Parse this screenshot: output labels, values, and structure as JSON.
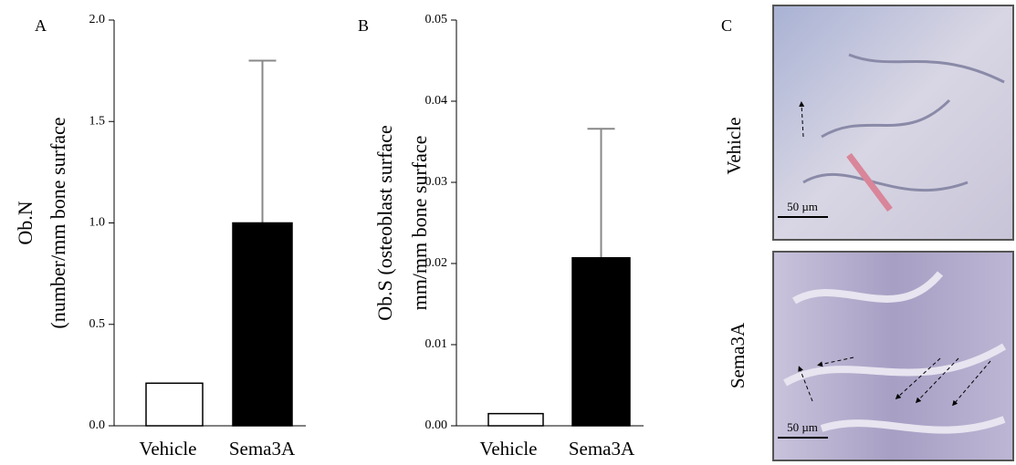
{
  "chart_data": [
    {
      "type": "bar",
      "panel": "A",
      "ylabel": [
        "Ob.N",
        "(number/mm bone surface"
      ],
      "categories": [
        "Vehicle",
        "Sema3A"
      ],
      "values": [
        0.21,
        1.0
      ],
      "errors": [
        null,
        0.8
      ],
      "colors": [
        "#ffffff",
        "#000000"
      ],
      "ylim": [
        0,
        2
      ],
      "yticks": [
        {
          "value": 0,
          "label": "0.0"
        },
        0.5,
        {
          "value": 1,
          "label": "1.0"
        },
        1.5,
        {
          "value": 2,
          "label": "2.0"
        }
      ]
    },
    {
      "type": "bar",
      "panel": "B",
      "ylabel": [
        "Ob.S (osteoblast surface",
        "mm/mm bone surface"
      ],
      "categories": [
        "Vehicle",
        "Sema3A"
      ],
      "values": [
        0.0015,
        0.0207
      ],
      "errors": [
        null,
        0.0159
      ],
      "colors": [
        "#ffffff",
        "#000000"
      ],
      "ylim": [
        0,
        0.05
      ],
      "yticks": [
        {
          "value": 0,
          "label": "0.00"
        },
        0.01,
        0.02,
        0.03,
        0.04,
        0.05
      ]
    }
  ],
  "panel_c": {
    "panel": "C",
    "rows": [
      {
        "label": "Vehicle",
        "scale": "50 µm"
      },
      {
        "label": "Sema3A",
        "scale": "50 µm"
      }
    ]
  }
}
